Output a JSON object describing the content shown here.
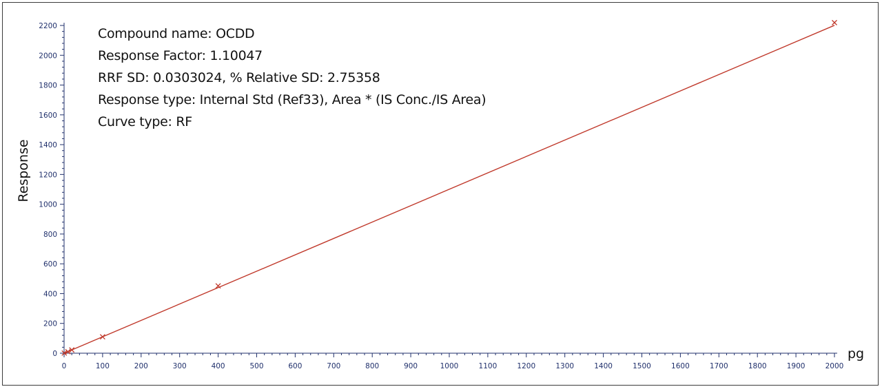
{
  "info": {
    "compound_name": "Compound name: OCDD",
    "response_factor": "Response Factor: 1.10047",
    "rrf_sd": "RRF SD: 0.0303024, % Relative SD: 2.75358",
    "response_type": "Response type: Internal Std (Ref33), Area * (IS Conc./IS Area)",
    "curve_type": "Curve type: RF"
  },
  "chart_data": {
    "type": "scatter",
    "xlabel": "pg",
    "ylabel": "Response",
    "xlim": [
      0,
      2000
    ],
    "ylim": [
      0,
      2200
    ],
    "x_ticks": [
      0,
      100,
      200,
      300,
      400,
      500,
      600,
      700,
      800,
      900,
      1000,
      1100,
      1200,
      1300,
      1400,
      1500,
      1600,
      1700,
      1800,
      1900,
      2000
    ],
    "y_ticks": [
      0,
      200,
      400,
      600,
      800,
      1000,
      1200,
      1400,
      1600,
      1800,
      2000,
      2200
    ],
    "points": [
      {
        "x": 0.5,
        "y": 1
      },
      {
        "x": 10,
        "y": 10
      },
      {
        "x": 20,
        "y": 22
      },
      {
        "x": 100,
        "y": 110
      },
      {
        "x": 400,
        "y": 452
      },
      {
        "x": 2000,
        "y": 2219
      }
    ],
    "fit_line": {
      "slope": 1.10047,
      "intercept": 0,
      "x_range": [
        0,
        2000
      ]
    },
    "colors": {
      "points": "#c0392b",
      "fit_line": "#c0392b",
      "axis": "#1f2f6b",
      "ticks": "#1f2f6b"
    },
    "grid": false
  }
}
